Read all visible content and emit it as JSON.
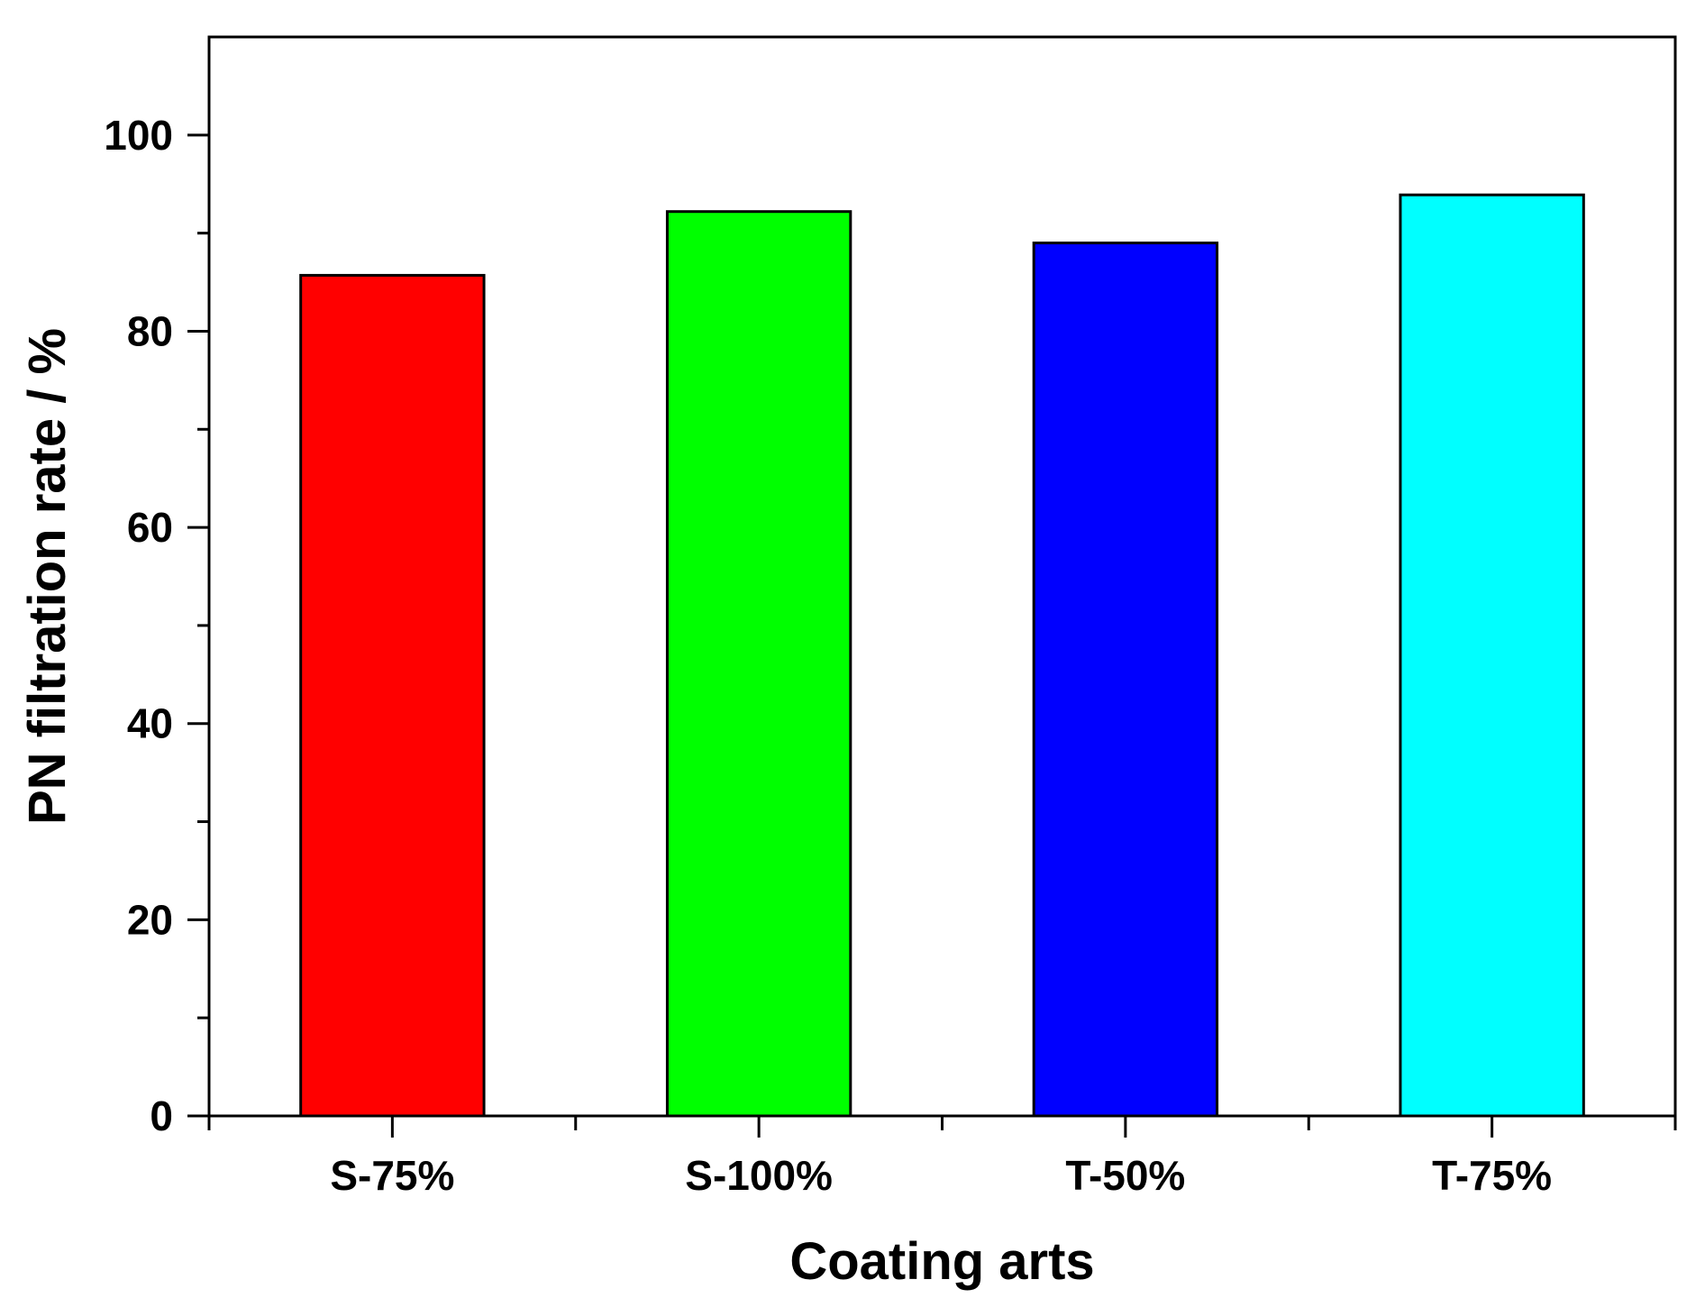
{
  "chart_data": {
    "type": "bar",
    "title": "",
    "xlabel": "Coating arts",
    "ylabel": "PN filtration rate / %",
    "categories": [
      "S-75%",
      "S-100%",
      "T-50%",
      "T-75%"
    ],
    "values": [
      85.7,
      92.2,
      89.0,
      93.9
    ],
    "bar_colors": [
      "#ff0000",
      "#00ff00",
      "#0000ff",
      "#00ffff"
    ],
    "ylim": [
      0,
      110
    ],
    "yticks": [
      0,
      20,
      40,
      60,
      80,
      100
    ],
    "yticks_minor": [
      10,
      30,
      50,
      70,
      90
    ],
    "grid": false,
    "legend": "none"
  }
}
